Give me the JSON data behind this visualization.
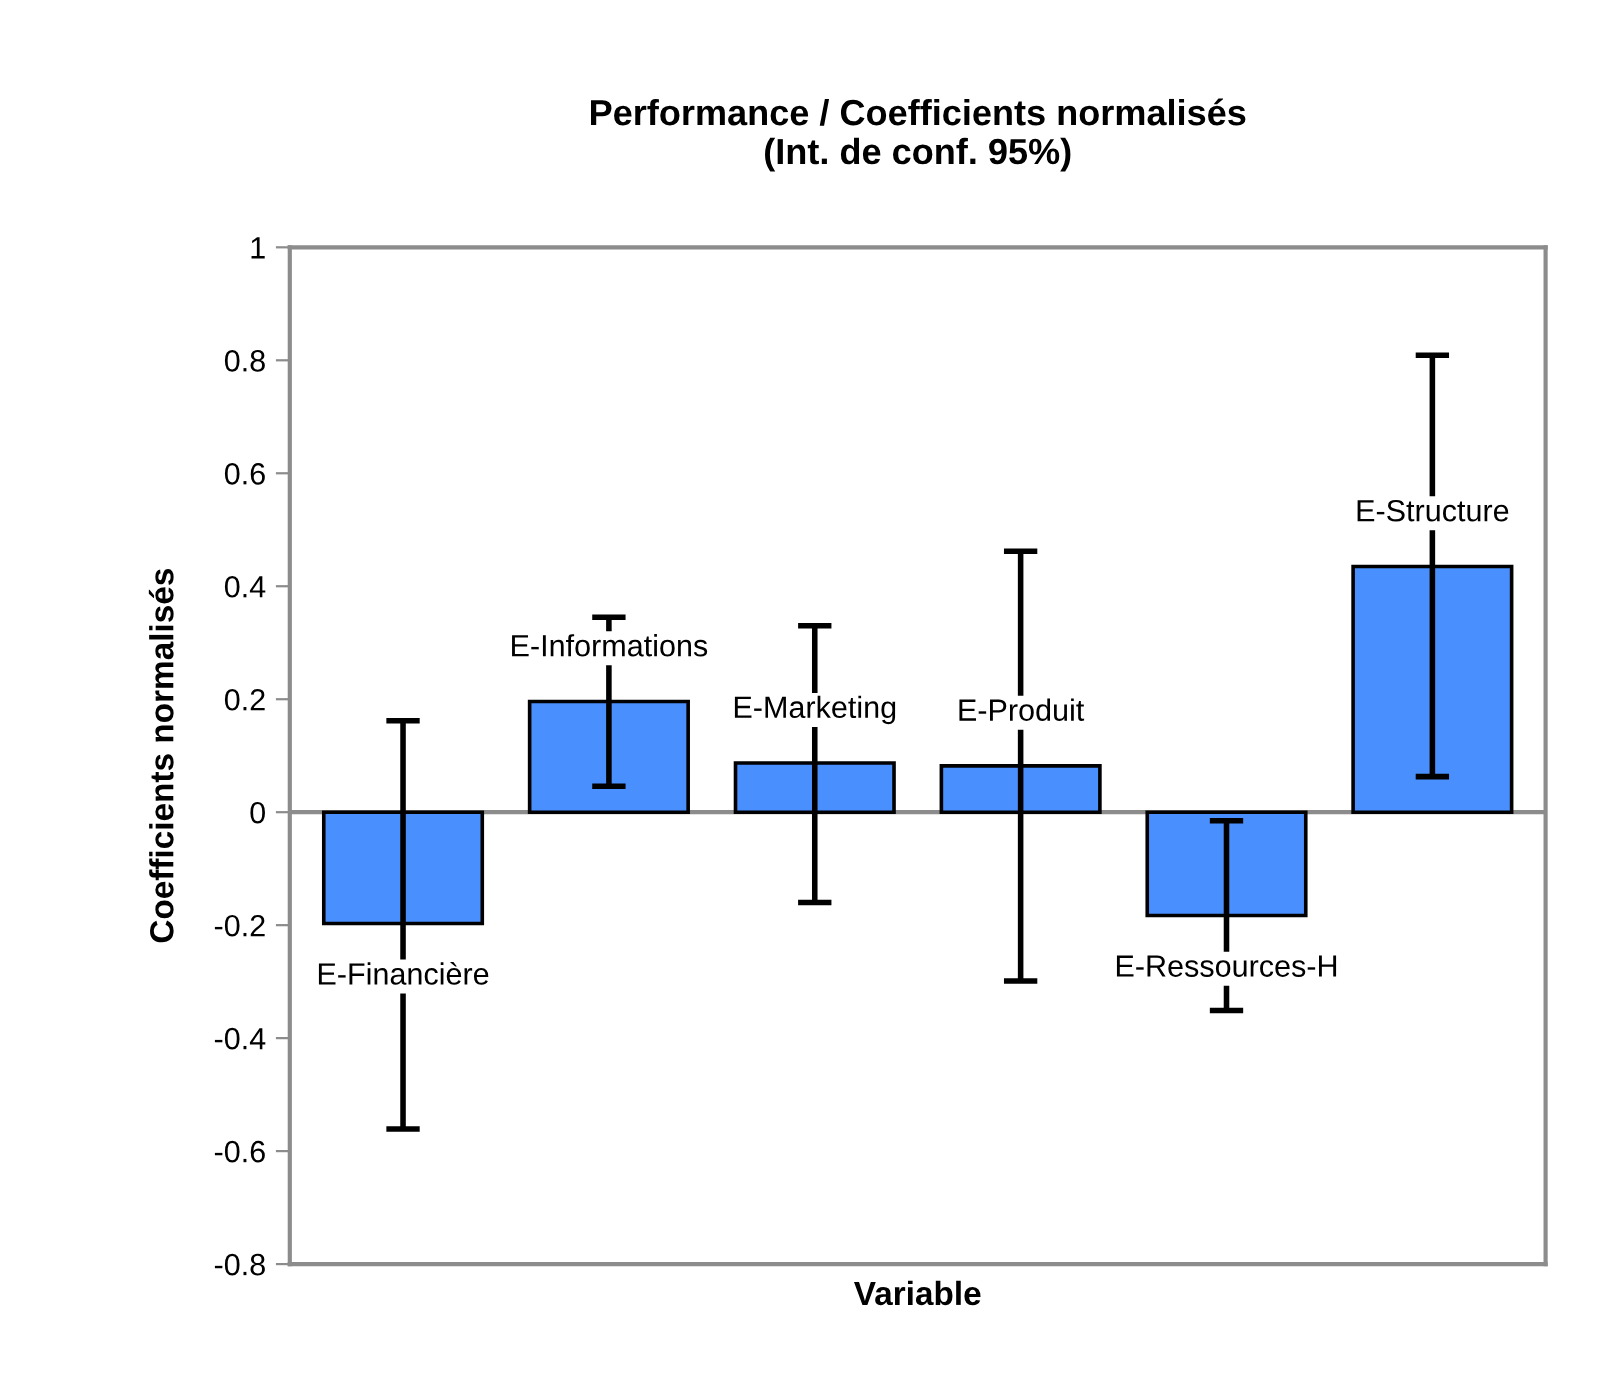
{
  "chart_data": {
    "type": "bar",
    "title": "Performance / Coefficients normalisés\n(Int. de conf. 95%)",
    "xlabel": "Variable",
    "ylabel": "Coefficients normalisés",
    "categories": [
      "E-Financière",
      "E-Informations",
      "E-Marketing",
      "E-Produit",
      "E-Ressources-H",
      "E-Structure"
    ],
    "values": [
      -0.197,
      0.196,
      0.087,
      0.082,
      -0.183,
      0.435
    ],
    "errors": [
      [
        -0.561,
        0.162
      ],
      [
        0.046,
        0.345
      ],
      [
        -0.16,
        0.33
      ],
      [
        -0.299,
        0.462
      ],
      [
        -0.351,
        -0.015
      ],
      [
        0.063,
        0.809
      ]
    ],
    "color": "#4a8ffe",
    "ylim": [
      -0.8,
      1
    ],
    "yticks": [
      {
        "value": -0.8,
        "label": "-0.8"
      },
      {
        "value": -0.6,
        "label": "-0.6"
      },
      {
        "value": -0.4,
        "label": "-0.4"
      },
      {
        "value": -0.2,
        "label": "-0.2"
      },
      0,
      0.2,
      0.4,
      0.6,
      0.8,
      1
    ],
    "tick_labels": "y",
    "legend": false
  }
}
